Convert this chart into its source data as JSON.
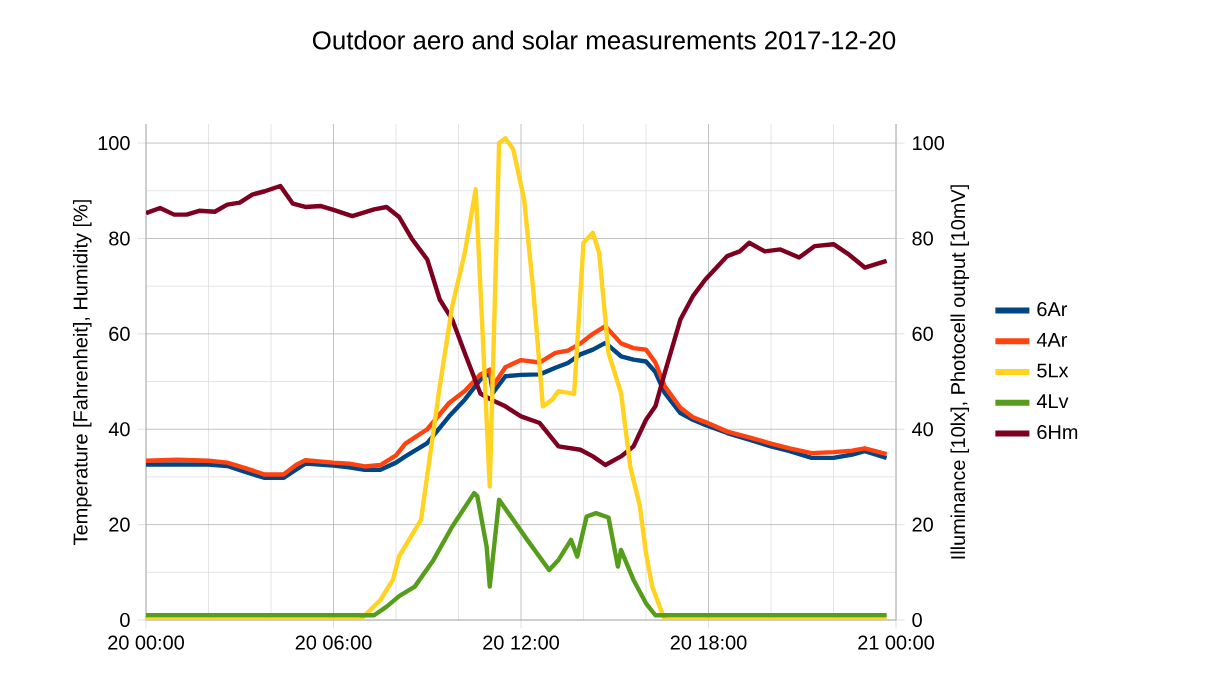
{
  "chart_data": {
    "type": "line",
    "title": "Outdoor aero and solar measurements 2017-12-20",
    "ylabel": "Temperature [Fahrenheit], Humidity [%]",
    "y2label": "Illuminance [10lx], Photocell output [10mV]",
    "xlim": [
      "2017-12-20T00:00",
      "2017-12-21T00:00"
    ],
    "ylim": [
      0,
      104
    ],
    "y2lim": [
      0,
      104
    ],
    "xticks": [
      {
        "value": "2017-12-20T00:00",
        "label": "20 00:00"
      },
      {
        "value": "2017-12-20T06:00",
        "label": "20 06:00"
      },
      {
        "value": "2017-12-20T12:00",
        "label": "20 12:00"
      },
      {
        "value": "2017-12-20T18:00",
        "label": "20 18:00"
      },
      {
        "value": "2017-12-21T00:00",
        "label": "21 00:00"
      }
    ],
    "yticks": [
      0,
      20,
      40,
      60,
      80,
      100
    ],
    "y2ticks": [
      0,
      20,
      40,
      60,
      80,
      100
    ],
    "grid": true,
    "legend": "right",
    "series": [
      {
        "name": "6Ar",
        "color": "#004586",
        "x": [
          "2017-12-20T00:00",
          "2017-12-20T01:00",
          "2017-12-20T02:00",
          "2017-12-20T02:36",
          "2017-12-20T03:12",
          "2017-12-20T03:48",
          "2017-12-20T04:24",
          "2017-12-20T04:48",
          "2017-12-20T05:06",
          "2017-12-20T06:00",
          "2017-12-20T06:30",
          "2017-12-20T07:00",
          "2017-12-20T07:30",
          "2017-12-20T08:00",
          "2017-12-20T08:18",
          "2017-12-20T09:00",
          "2017-12-20T09:42",
          "2017-12-20T10:12",
          "2017-12-20T10:42",
          "2017-12-20T11:00",
          "2017-12-20T11:06",
          "2017-12-20T11:30",
          "2017-12-20T12:00",
          "2017-12-20T12:36",
          "2017-12-20T13:06",
          "2017-12-20T13:30",
          "2017-12-20T13:54",
          "2017-12-20T14:18",
          "2017-12-20T14:42",
          "2017-12-20T15:12",
          "2017-12-20T15:36",
          "2017-12-20T16:00",
          "2017-12-20T16:18",
          "2017-12-20T16:36",
          "2017-12-20T17:06",
          "2017-12-20T17:30",
          "2017-12-20T17:54",
          "2017-12-20T18:36",
          "2017-12-20T19:18",
          "2017-12-20T20:00",
          "2017-12-20T20:36",
          "2017-12-20T21:18",
          "2017-12-20T22:00",
          "2017-12-20T22:36",
          "2017-12-20T23:00",
          "2017-12-20T23:42"
        ],
        "values": [
          32.6,
          32.6,
          32.6,
          32.3,
          31,
          29.8,
          29.8,
          31.5,
          32.8,
          32.4,
          32,
          31.5,
          31.5,
          33,
          34.3,
          37.1,
          42.7,
          46.2,
          50.4,
          51.8,
          47.6,
          51.1,
          51.4,
          51.5,
          52.9,
          53.9,
          55.7,
          56.7,
          58.1,
          55.3,
          54.6,
          54.2,
          52,
          47.6,
          43.4,
          42,
          40.9,
          39.2,
          37.8,
          36.4,
          35.4,
          34,
          34,
          34.7,
          35.4,
          34
        ]
      },
      {
        "name": "4Ar",
        "color": "#ff420e",
        "x": [
          "2017-12-20T00:00",
          "2017-12-20T01:00",
          "2017-12-20T02:00",
          "2017-12-20T02:36",
          "2017-12-20T03:12",
          "2017-12-20T03:48",
          "2017-12-20T04:24",
          "2017-12-20T04:48",
          "2017-12-20T05:06",
          "2017-12-20T06:00",
          "2017-12-20T06:30",
          "2017-12-20T07:00",
          "2017-12-20T07:30",
          "2017-12-20T08:00",
          "2017-12-20T08:18",
          "2017-12-20T09:00",
          "2017-12-20T09:42",
          "2017-12-20T10:12",
          "2017-12-20T10:42",
          "2017-12-20T11:00",
          "2017-12-20T11:06",
          "2017-12-20T11:30",
          "2017-12-20T12:00",
          "2017-12-20T12:36",
          "2017-12-20T13:06",
          "2017-12-20T13:30",
          "2017-12-20T13:54",
          "2017-12-20T14:18",
          "2017-12-20T14:42",
          "2017-12-20T15:12",
          "2017-12-20T15:36",
          "2017-12-20T16:00",
          "2017-12-20T16:18",
          "2017-12-20T16:36",
          "2017-12-20T17:06",
          "2017-12-20T17:30",
          "2017-12-20T17:54",
          "2017-12-20T18:36",
          "2017-12-20T19:18",
          "2017-12-20T20:00",
          "2017-12-20T20:36",
          "2017-12-20T21:18",
          "2017-12-20T22:00",
          "2017-12-20T22:36",
          "2017-12-20T23:00",
          "2017-12-20T23:42"
        ],
        "values": [
          33.4,
          33.6,
          33.4,
          33,
          31.8,
          30.5,
          30.5,
          32.5,
          33.5,
          33,
          32.8,
          32.2,
          32.5,
          34.5,
          37,
          40,
          45.5,
          48,
          51.5,
          52.5,
          49,
          53,
          54.5,
          54,
          56,
          56.5,
          58,
          60,
          61.6,
          58,
          57,
          56.7,
          54,
          49,
          44.5,
          42.5,
          41.5,
          39.5,
          38.3,
          37,
          36,
          35,
          35.2,
          35.5,
          36,
          34.8
        ]
      },
      {
        "name": "5Lx",
        "color": "#ffd320",
        "axis": "y2",
        "x": [
          "2017-12-20T00:00",
          "2017-12-20T06:51",
          "2017-12-20T07:30",
          "2017-12-20T07:54",
          "2017-12-20T08:06",
          "2017-12-20T08:48",
          "2017-12-20T09:24",
          "2017-12-20T09:48",
          "2017-12-20T10:12",
          "2017-12-20T10:33",
          "2017-12-20T10:45",
          "2017-12-20T11:00",
          "2017-12-20T11:18",
          "2017-12-20T11:30",
          "2017-12-20T11:45",
          "2017-12-20T12:06",
          "2017-12-20T12:24",
          "2017-12-20T12:42",
          "2017-12-20T13:00",
          "2017-12-20T13:12",
          "2017-12-20T13:42",
          "2017-12-20T14:00",
          "2017-12-20T14:18",
          "2017-12-20T14:30",
          "2017-12-20T14:48",
          "2017-12-20T15:12",
          "2017-12-20T15:30",
          "2017-12-20T15:48",
          "2017-12-20T16:00",
          "2017-12-20T16:12",
          "2017-12-20T16:36",
          "2017-12-20T23:42"
        ],
        "values": [
          0,
          0,
          4.2,
          8.4,
          13.4,
          21,
          49,
          65.8,
          77,
          90.3,
          63,
          28,
          100,
          101,
          98.7,
          88.2,
          68.6,
          44.8,
          46.2,
          48,
          47.4,
          79.1,
          81.2,
          77,
          56,
          47.6,
          32,
          24,
          14,
          7,
          0,
          0
        ]
      },
      {
        "name": "4Lv",
        "color": "#579d1c",
        "axis": "y2",
        "x": [
          "2017-12-20T00:00",
          "2017-12-20T07:18",
          "2017-12-20T07:42",
          "2017-12-20T08:06",
          "2017-12-20T08:36",
          "2017-12-20T09:12",
          "2017-12-20T09:48",
          "2017-12-20T10:30",
          "2017-12-20T10:36",
          "2017-12-20T10:54",
          "2017-12-20T11:00",
          "2017-12-20T11:18",
          "2017-12-20T11:45",
          "2017-12-20T12:12",
          "2017-12-20T12:54",
          "2017-12-20T13:12",
          "2017-12-20T13:36",
          "2017-12-20T13:48",
          "2017-12-20T14:06",
          "2017-12-20T14:24",
          "2017-12-20T14:48",
          "2017-12-20T15:06",
          "2017-12-20T15:12",
          "2017-12-20T15:36",
          "2017-12-20T16:00",
          "2017-12-20T16:18",
          "2017-12-20T23:42"
        ],
        "values": [
          1,
          1,
          2.8,
          5,
          7,
          12.6,
          19.6,
          26.6,
          26,
          15.4,
          7,
          25.2,
          21,
          16.8,
          10.5,
          12.6,
          16.8,
          13.3,
          21.7,
          22.4,
          21.5,
          11.2,
          14.7,
          8.4,
          3.5,
          1,
          1
        ]
      },
      {
        "name": "6Hm",
        "color": "#7e0021",
        "x": [
          "2017-12-20T00:00",
          "2017-12-20T00:27",
          "2017-12-20T00:54",
          "2017-12-20T01:18",
          "2017-12-20T01:42",
          "2017-12-20T02:12",
          "2017-12-20T02:36",
          "2017-12-20T03:00",
          "2017-12-20T03:24",
          "2017-12-20T03:48",
          "2017-12-20T04:18",
          "2017-12-20T04:42",
          "2017-12-20T05:06",
          "2017-12-20T05:36",
          "2017-12-20T06:00",
          "2017-12-20T06:36",
          "2017-12-20T07:18",
          "2017-12-20T07:42",
          "2017-12-20T08:06",
          "2017-12-20T08:30",
          "2017-12-20T09:00",
          "2017-12-20T09:24",
          "2017-12-20T09:48",
          "2017-12-20T10:12",
          "2017-12-20T10:42",
          "2017-12-20T11:06",
          "2017-12-20T11:30",
          "2017-12-20T12:00",
          "2017-12-20T12:36",
          "2017-12-20T13:12",
          "2017-12-20T13:54",
          "2017-12-20T14:18",
          "2017-12-20T14:42",
          "2017-12-20T15:12",
          "2017-12-20T15:36",
          "2017-12-20T16:00",
          "2017-12-20T16:18",
          "2017-12-20T16:36",
          "2017-12-20T17:06",
          "2017-12-20T17:30",
          "2017-12-20T17:54",
          "2017-12-20T18:36",
          "2017-12-20T19:00",
          "2017-12-20T19:18",
          "2017-12-20T19:48",
          "2017-12-20T20:18",
          "2017-12-20T20:54",
          "2017-12-20T21:24",
          "2017-12-20T22:00",
          "2017-12-20T22:30",
          "2017-12-20T23:00",
          "2017-12-20T23:42"
        ],
        "values": [
          85.3,
          86.4,
          85,
          85,
          85.8,
          85.6,
          87.1,
          87.5,
          89.2,
          89.9,
          91,
          87.3,
          86.6,
          86.8,
          86,
          84.7,
          86.1,
          86.6,
          84.5,
          80,
          75.6,
          67.2,
          63,
          56,
          47.5,
          46,
          44.8,
          42.7,
          41.3,
          36.4,
          35.7,
          34.3,
          32.5,
          34.3,
          36.4,
          42,
          44.8,
          51.8,
          63,
          67.9,
          71.4,
          76.3,
          77.3,
          79.1,
          77.3,
          77.7,
          76,
          78.4,
          78.8,
          76.6,
          73.9,
          75.3
        ]
      }
    ]
  }
}
